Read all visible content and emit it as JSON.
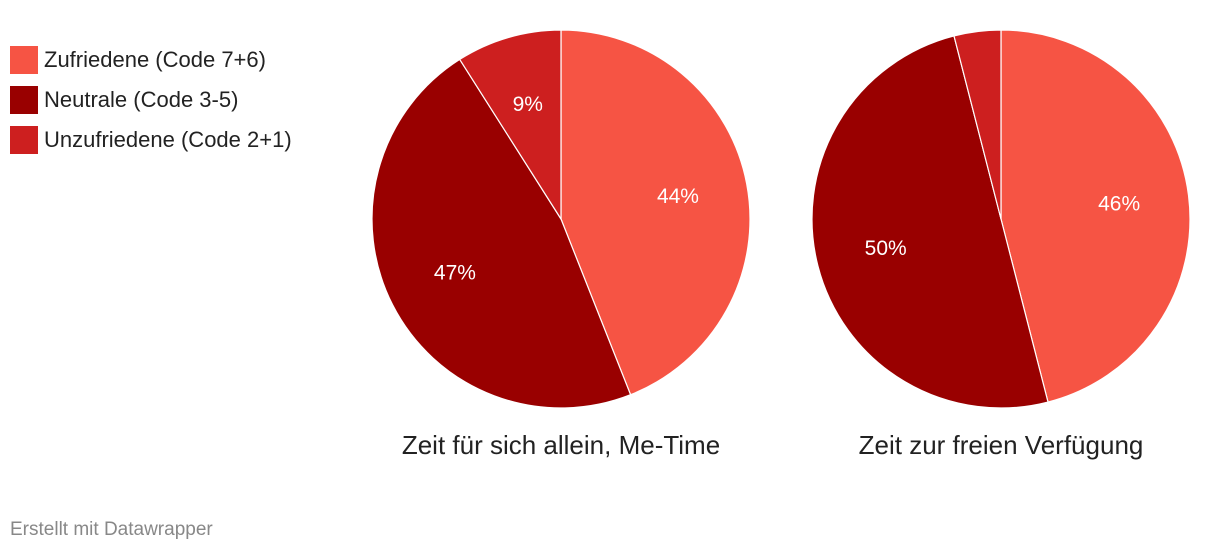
{
  "legend": [
    {
      "label": "Zufriedene (Code 7+6)",
      "color": "#F65444"
    },
    {
      "label": "Neutrale (Code 3-5)",
      "color": "#990000"
    },
    {
      "label": "Unzufriedene (Code 2+1)",
      "color": "#CD1F1F"
    }
  ],
  "chart_data": [
    {
      "type": "pie",
      "title": "Zeit für sich allein, Me-Time",
      "slices": [
        {
          "name": "Zufriedene (Code 7+6)",
          "value": 44,
          "label": "44%",
          "color": "#F65444"
        },
        {
          "name": "Neutrale (Code 3-5)",
          "value": 47,
          "label": "47%",
          "color": "#990000"
        },
        {
          "name": "Unzufriedene (Code 2+1)",
          "value": 9,
          "label": "9%",
          "color": "#CD1F1F"
        }
      ]
    },
    {
      "type": "pie",
      "title": "Zeit zur freien Verfügung",
      "slices": [
        {
          "name": "Zufriedene (Code 7+6)",
          "value": 46,
          "label": "46%",
          "color": "#F65444"
        },
        {
          "name": "Neutrale (Code 3-5)",
          "value": 50,
          "label": "50%",
          "color": "#990000"
        },
        {
          "name": "Unzufriedene (Code 2+1)",
          "value": 4,
          "label": "",
          "color": "#CD1F1F"
        }
      ]
    }
  ],
  "footer": "Erstellt mit Datawrapper"
}
